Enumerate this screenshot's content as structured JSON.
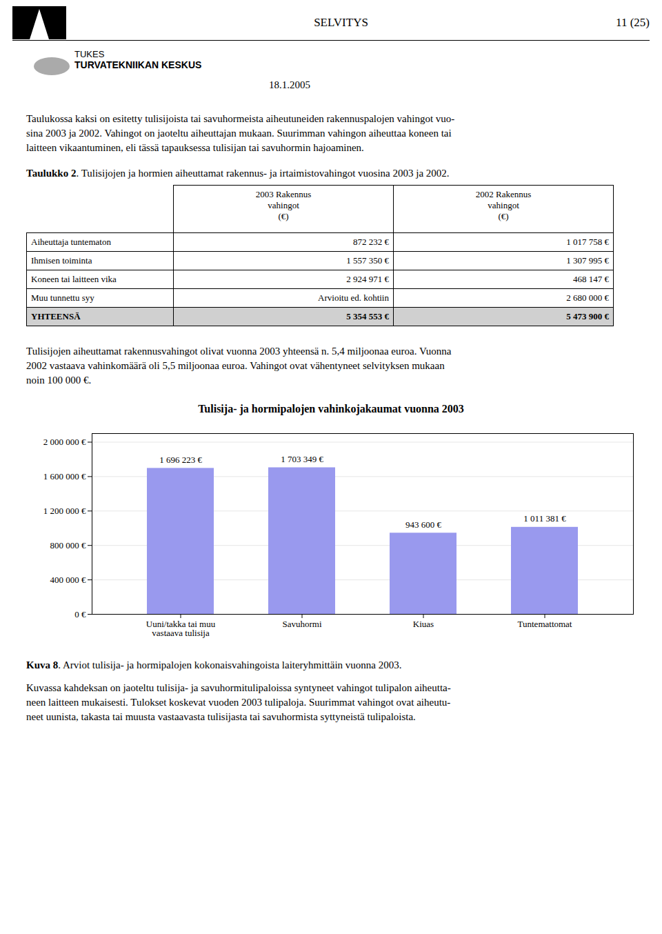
{
  "chart_data": {
    "type": "bar",
    "title": "Tulisija- ja hormipalojen vahinkojakaumat vuonna 2003",
    "categories": [
      "Uuni/takka tai muu\nvastaava tulisija",
      "Savuhormi",
      "Kiuas",
      "Tuntemattomat"
    ],
    "values": [
      1696223,
      1703349,
      943600,
      1011381
    ],
    "value_labels": [
      "1 696 223 €",
      "1 703 349 €",
      "943 600 €",
      "1 011 381 €"
    ],
    "data_labels": true,
    "color": "#9999ee",
    "ylim": [
      0,
      2100000
    ],
    "yticks": [
      {
        "value": 0,
        "label": "0 €"
      },
      {
        "value": 400000,
        "label": "400 000 €"
      },
      {
        "value": 800000,
        "label": "800 000 €"
      },
      {
        "value": 1200000,
        "label": "1 200 000 €"
      },
      {
        "value": 1600000,
        "label": "1 600 000 €"
      },
      {
        "value": 2000000,
        "label": "2 000 000 €"
      }
    ],
    "grid": true
  },
  "page": {
    "header_center": "SELVITYS",
    "header_right": "11 (25)",
    "logo_text1": "TUKES",
    "logo_text2": "TURVATEKNIIKAN KESKUS",
    "date": "18.1.2005",
    "intro_lines": [
      "Taulukossa kaksi on esitetty tulisijoista tai savuhormeista aiheutuneiden rakennuspalojen vahingot vuo-",
      "sina 2003 ja 2002. Vahingot on jaoteltu aiheuttajan mukaan. Suurimman vahingon aiheuttaa koneen tai",
      "laitteen vikaantuminen, eli tässä tapauksessa tulisijan tai savuhormin hajoaminen."
    ],
    "table_caption_bold": "Taulukko 2",
    "table_caption_rest": ". Tulisijojen ja hormien aiheuttamat rakennus- ja irtaimistovahingot vuosina 2003 ja 2002.",
    "table_headers": [
      "2003 Rakennus\nvahingot\n(€)",
      "2002 Rakennus\nvahingot\n(€)"
    ],
    "table_rows": [
      [
        "Aiheuttaja tuntematon",
        "872 232 €",
        "1 017 758 €"
      ],
      [
        "Ihmisen toiminta",
        "1 557 350 €",
        "1 307 995 €"
      ],
      [
        "Koneen tai laitteen vika",
        "2 924 971 €",
        "468 147 €"
      ],
      [
        "Muu tunnettu syy",
        "Arvioitu ed. kohtiin",
        "2 680 000 €"
      ],
      [
        "YHTEENSÄ",
        "5 354 553 €",
        "5 473 900 €"
      ]
    ],
    "para2_lines": [
      "Tulisijojen aiheuttamat rakennusvahingot olivat vuonna 2003 yhteensä n. 5,4 miljoonaa euroa. Vuonna",
      "2002 vastaava vahinkomäärä oli 5,5 miljoonaa euroa. Vahingot ovat vähentyneet selvityksen mukaan",
      "noin 100 000 €."
    ],
    "figure_caption_bold": "Kuva 8",
    "figure_caption_rest": ". Arviot tulisija- ja hormipalojen kokonaisvahingoista laiteryhmittäin vuonna 2003.",
    "para3_lines": [
      "Kuvassa kahdeksan on jaoteltu tulisija- ja savuhormitulipaloissa syntyneet vahingot tulipalon aiheutta-",
      "neen laitteen mukaisesti. Tulokset koskevat vuoden 2003 tulipaloja. Suurimmat vahingot ovat aiheutu-",
      "neet uunista, takasta tai muusta vastaavasta tulisijasta tai savuhormista syttyneistä tulipaloista."
    ]
  }
}
